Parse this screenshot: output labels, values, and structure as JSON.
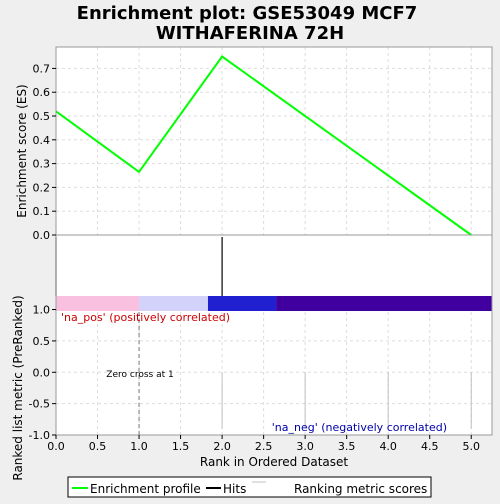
{
  "title_line1": "Enrichment plot: GSE53049 MCF7",
  "title_line2": "WITHAFERINA 72H",
  "chart_data": {
    "type": "line",
    "es_panel": {
      "ylabel": "Enrichment score (ES)",
      "ylim": [
        0,
        0.79
      ],
      "yticks": [
        "0.0",
        "0.1",
        "0.2",
        "0.3",
        "0.4",
        "0.5",
        "0.6",
        "0.7"
      ],
      "ytick_values": [
        0,
        0.1,
        0.2,
        0.3,
        0.4,
        0.5,
        0.6,
        0.7
      ],
      "grid": true,
      "series": [
        {
          "label": "Enrichment profile",
          "color": "#00ff00",
          "x": [
            0,
            1,
            2,
            5
          ],
          "y": [
            0.52,
            0.265,
            0.75,
            0.0
          ]
        }
      ]
    },
    "hits": {
      "label": "Hits",
      "x": [
        0,
        2
      ],
      "color": "#000000"
    },
    "bar": {
      "segments": [
        {
          "x0": 0.0,
          "x1": 1.0,
          "color": "#fac0e0"
        },
        {
          "x0": 1.0,
          "x1": 1.83,
          "color": "#d2d2fa"
        },
        {
          "x0": 1.83,
          "x1": 2.65,
          "color": "#2020d0"
        },
        {
          "x0": 2.65,
          "x1": 5.25,
          "color": "#4000a0"
        }
      ]
    },
    "metric_panel": {
      "ylabel": "Ranked list metric (PreRanked)",
      "xlabel": "Rank in Ordered Dataset",
      "ylim": [
        -1.0,
        1.2
      ],
      "yticks": [
        "1.0",
        "0.5",
        "0.0",
        "-0.5",
        "-1.0"
      ],
      "ytick_values": [
        1.0,
        0.5,
        0.0,
        -0.5,
        -1.0
      ],
      "xlim": [
        0,
        5.25
      ],
      "xticks": [
        "0.0",
        "0.5",
        "1.0",
        "1.5",
        "2.0",
        "2.5",
        "3.0",
        "3.5",
        "4.0",
        "4.5",
        "5.0"
      ],
      "xtick_values": [
        0,
        0.5,
        1.0,
        1.5,
        2.0,
        2.5,
        3.0,
        3.5,
        4.0,
        4.5,
        5.0
      ],
      "metric_lines_x": [
        2,
        3,
        4,
        5
      ],
      "zero_cross_x": 1,
      "pos_label": "'na_pos' (positively correlated)",
      "neg_label": "'na_neg' (negatively correlated)",
      "zero_cross_label": "Zero cross at 1",
      "metric_label": "Ranking metric scores"
    },
    "legend": {
      "placement": "bottom",
      "items": [
        "Enrichment profile",
        "Hits",
        "Ranking metric scores"
      ]
    }
  },
  "colors": {
    "pos_label": "#cc0000",
    "neg_label": "#0000aa",
    "metric_lines": "#c0c0c0",
    "grid": "#dddddd",
    "frame": "#999999"
  }
}
